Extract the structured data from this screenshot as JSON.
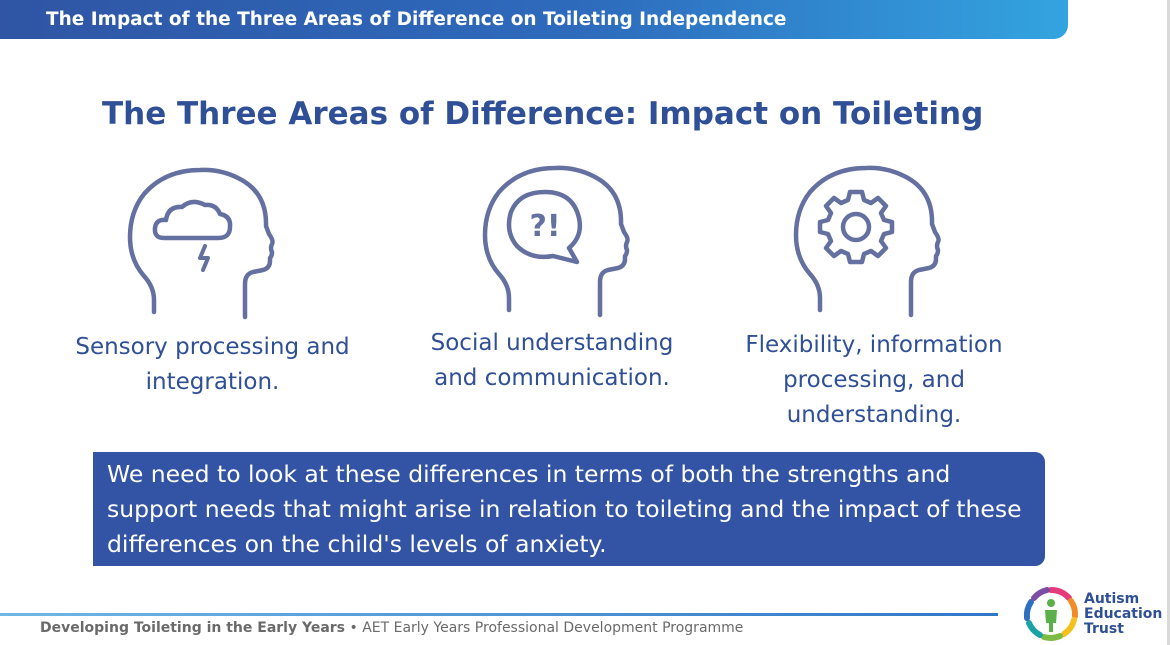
{
  "header": {
    "title": "The Impact of the Three Areas of Difference on Toileting Independence"
  },
  "main": {
    "title": "The Three Areas of Difference: Impact on Toileting"
  },
  "areas": [
    {
      "icon": "head-storm-cloud-icon",
      "label_line1": "Sensory processing and",
      "label_line2": "integration."
    },
    {
      "icon": "head-speech-bubble-icon",
      "icon_text": "?!",
      "label_line1": "Social understanding",
      "label_line2": "and communication."
    },
    {
      "icon": "head-gear-icon",
      "label_line1": "Flexibility, information",
      "label_line2": "processing, and",
      "label_line3": "understanding."
    }
  ],
  "callout": {
    "line1": "We need to look at these differences in terms of both the strengths and",
    "line2": "support needs that might arise in relation to toileting and the impact of these",
    "line3": "differences on the child's levels of anxiety."
  },
  "footer": {
    "course": "Developing Toileting in the Early Years",
    "separator": " • ",
    "programme": "AET Early Years Professional Development Programme"
  },
  "logo": {
    "line1": "Autism",
    "line2": "Education",
    "line3": "Trust"
  },
  "colors": {
    "brand_blue": "#2f4f96",
    "callout_bg": "#3354a4",
    "header_start": "#2f55a4",
    "header_end": "#33a4e0"
  }
}
